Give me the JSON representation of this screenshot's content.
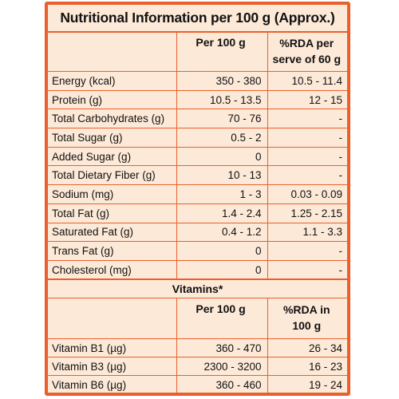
{
  "title": "Nutritional Information per 100 g (Approx.)",
  "nutrition": {
    "headers": [
      "",
      "Per 100 g",
      "%RDA per serve of 60 g"
    ],
    "header_col3_lines": [
      "%RDA per",
      "serve of 60 g"
    ],
    "rows": [
      {
        "name": "Energy (kcal)",
        "per100": "350 - 380",
        "rda": "10.5 - 11.4"
      },
      {
        "name": "Protein (g)",
        "per100": "10.5 - 13.5",
        "rda": "12 - 15"
      },
      {
        "name": "Total Carbohydrates (g)",
        "per100": "70 - 76",
        "rda": "-"
      },
      {
        "name": "Total Sugar (g)",
        "per100": "0.5 - 2",
        "rda": "-"
      },
      {
        "name": "Added Sugar (g)",
        "per100": "0",
        "rda": "-"
      },
      {
        "name": "Total Dietary Fiber (g)",
        "per100": "10 - 13",
        "rda": "-"
      },
      {
        "name": "Sodium (mg)",
        "per100": "1 - 3",
        "rda": "0.03 - 0.09"
      },
      {
        "name": "Total Fat (g)",
        "per100": "1.4 - 2.4",
        "rda": "1.25 - 2.15"
      },
      {
        "name": "Saturated Fat (g)",
        "per100": "0.4 - 1.2",
        "rda": "1.1 - 3.3"
      },
      {
        "name": "Trans Fat (g)",
        "per100": "0",
        "rda": "-"
      },
      {
        "name": "Cholesterol (mg)",
        "per100": "0",
        "rda": "-"
      }
    ]
  },
  "vitamins": {
    "title": "Vitamins*",
    "headers": [
      "",
      "Per 100 g",
      "%RDA in 100 g"
    ],
    "header_col3_lines": [
      "%RDA in",
      "100 g"
    ],
    "rows": [
      {
        "name": "Vitamin B1 (µg)",
        "per100": "360 - 470",
        "rda": "26 - 34"
      },
      {
        "name": "Vitamin B3 (µg)",
        "per100": "2300 - 3200",
        "rda": "16 - 23"
      },
      {
        "name": "Vitamin B6 (µg)",
        "per100": "360 - 460",
        "rda": "19 - 24"
      }
    ]
  },
  "colors": {
    "border": "#e9602e",
    "background": "#fde9d7"
  }
}
